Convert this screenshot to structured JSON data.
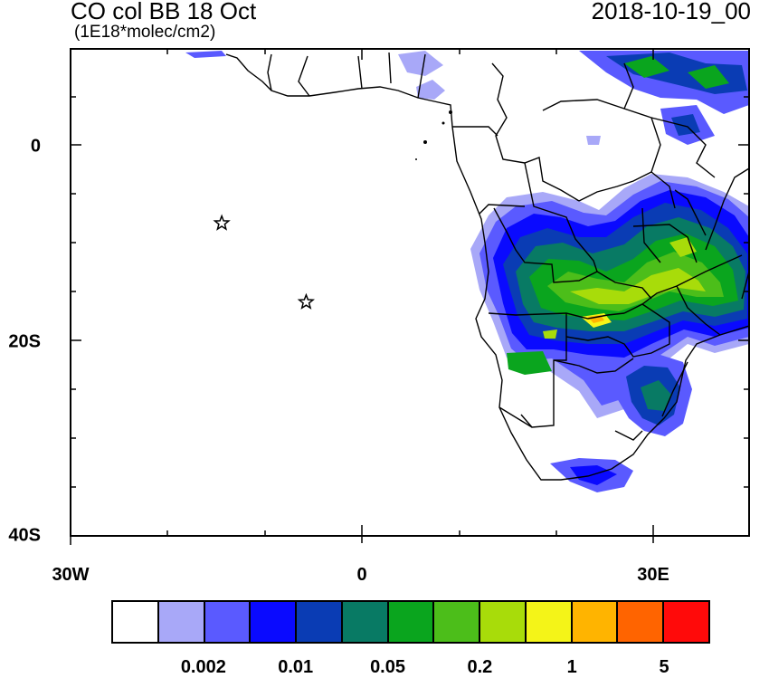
{
  "title": "CO col BB 18 Oct",
  "units": "(1E18*molec/cm2)",
  "valid_time": "2018-10-19_00",
  "axes": {
    "lat_labels": [
      "0",
      "20S",
      "40S"
    ],
    "lat_values": [
      0,
      -20,
      -40
    ],
    "lon_labels": [
      "30W",
      "0",
      "30E"
    ],
    "lon_values": [
      -30,
      0,
      30
    ],
    "lon_range": [
      -30,
      40
    ],
    "lat_range": [
      -40,
      10
    ]
  },
  "markers": [
    {
      "name": "star",
      "lon": -14.4,
      "lat": -7.9
    },
    {
      "name": "star",
      "lon": -5.7,
      "lat": -16.0
    }
  ],
  "colorbar": {
    "colors": [
      "#ffffff",
      "#a8a8f8",
      "#5a5aff",
      "#0a0aff",
      "#0a3cb4",
      "#087a64",
      "#0aa51e",
      "#4cbe1a",
      "#a8dc0a",
      "#f4f418",
      "#ffb400",
      "#ff6400",
      "#ff0a0a"
    ],
    "labels": [
      "0.002",
      "0.01",
      "0.05",
      "0.2",
      "1",
      "5"
    ]
  },
  "chart_data": {
    "type": "heatmap",
    "title": "CO col BB 18 Oct",
    "subtitle": "(1E18*molec/cm2)",
    "valid_time": "2018-10-19_00",
    "xlim": [
      -30,
      40
    ],
    "ylim": [
      -40,
      10
    ],
    "levels": [
      0.002,
      0.01,
      0.05,
      0.2,
      1,
      5
    ],
    "legend": "colorbar-bottom"
  }
}
